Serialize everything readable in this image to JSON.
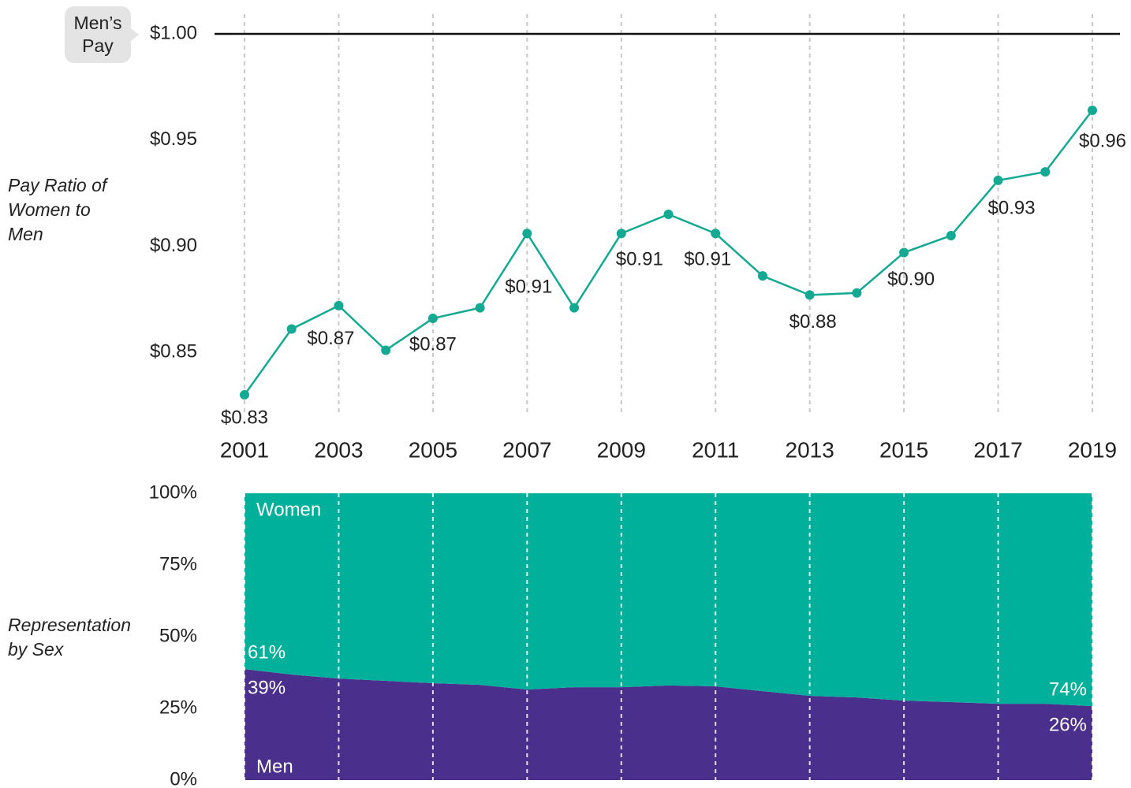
{
  "chart_data": [
    {
      "type": "line",
      "y_label": "Pay Ratio of Women to Men",
      "annotation": "Men’s Pay",
      "reference_line": 1.0,
      "x": [
        2001,
        2002,
        2003,
        2004,
        2005,
        2006,
        2007,
        2008,
        2009,
        2010,
        2011,
        2012,
        2013,
        2014,
        2015,
        2016,
        2017,
        2018,
        2019
      ],
      "xlim": [
        2001,
        2019
      ],
      "xticks": [
        2001,
        2003,
        2005,
        2007,
        2009,
        2011,
        2013,
        2015,
        2017,
        2019
      ],
      "ylim": [
        0.82,
        1.0
      ],
      "yticks": [
        {
          "value": 0.85,
          "label": "$0.85"
        },
        {
          "value": 0.9,
          "label": "$0.90"
        },
        {
          "value": 0.95,
          "label": "$0.95"
        },
        {
          "value": 1.0,
          "label": "$1.00"
        }
      ],
      "grid": true,
      "series": [
        {
          "name": "Pay Ratio",
          "color": "#13a993",
          "values": [
            0.83,
            0.861,
            0.872,
            0.851,
            0.866,
            0.871,
            0.906,
            0.871,
            0.906,
            0.915,
            0.906,
            0.886,
            0.877,
            0.878,
            0.897,
            0.905,
            0.931,
            0.935,
            0.964
          ],
          "value_labels": [
            "$0.83",
            null,
            "$0.87",
            null,
            "$0.87",
            null,
            "$0.91",
            null,
            "$0.91",
            null,
            "$0.91",
            null,
            "$0.88",
            null,
            "$0.90",
            null,
            "$0.93",
            null,
            "$0.96"
          ]
        }
      ]
    },
    {
      "type": "area",
      "stacked": true,
      "y_label": "Representation by Sex",
      "x": [
        2001,
        2002,
        2003,
        2004,
        2005,
        2006,
        2007,
        2008,
        2009,
        2010,
        2011,
        2012,
        2013,
        2014,
        2015,
        2016,
        2017,
        2018,
        2019
      ],
      "xlim": [
        2001,
        2019
      ],
      "xticks": [
        2001,
        2003,
        2005,
        2007,
        2009,
        2011,
        2013,
        2015,
        2017,
        2019
      ],
      "ylim": [
        0,
        100
      ],
      "yticks": [
        {
          "value": 0,
          "label": "0%"
        },
        {
          "value": 25,
          "label": "25%"
        },
        {
          "value": 50,
          "label": "50%"
        },
        {
          "value": 75,
          "label": "75%"
        },
        {
          "value": 100,
          "label": "100%"
        }
      ],
      "grid": true,
      "series": [
        {
          "name": "Men",
          "color": "#4b2f8d",
          "values": [
            38.7,
            36.8,
            35.4,
            34.6,
            33.8,
            33.2,
            31.6,
            32.4,
            32.4,
            33.0,
            32.7,
            31.0,
            29.4,
            28.8,
            27.7,
            27.2,
            26.6,
            26.6,
            25.8
          ],
          "value_labels": [
            "39%",
            null,
            null,
            null,
            null,
            null,
            null,
            null,
            null,
            null,
            null,
            null,
            null,
            null,
            null,
            null,
            null,
            null,
            "26%"
          ]
        },
        {
          "name": "Women",
          "color": "#00b09b",
          "values": [
            61.3,
            63.2,
            64.6,
            65.4,
            66.2,
            66.8,
            68.4,
            67.6,
            67.6,
            67.0,
            67.3,
            69.0,
            70.6,
            71.2,
            72.3,
            72.8,
            73.4,
            73.4,
            74.2
          ],
          "value_labels": [
            "61%",
            null,
            null,
            null,
            null,
            null,
            null,
            null,
            null,
            null,
            null,
            null,
            null,
            null,
            null,
            null,
            null,
            null,
            "74%"
          ]
        }
      ]
    }
  ]
}
